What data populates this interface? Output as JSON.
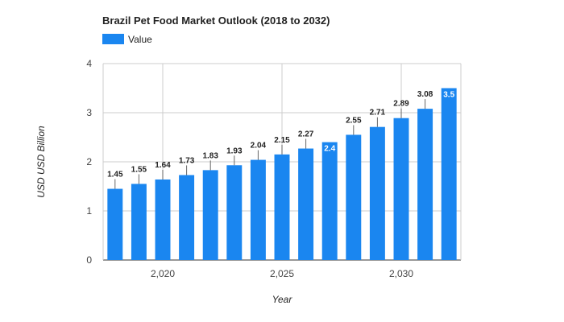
{
  "chart_data": {
    "type": "bar",
    "title": "Brazil Pet Food Market Outlook (2018 to 2032)",
    "xlabel": "Year",
    "ylabel": "USD USD Billion",
    "legend": {
      "position": "top-left",
      "entries": [
        "Value"
      ]
    },
    "x": [
      2018,
      2019,
      2020,
      2021,
      2022,
      2023,
      2024,
      2025,
      2026,
      2027,
      2028,
      2029,
      2030,
      2031,
      2032
    ],
    "series": [
      {
        "name": "Value",
        "values": [
          1.45,
          1.55,
          1.64,
          1.73,
          1.83,
          1.93,
          2.04,
          2.15,
          2.27,
          2.4,
          2.55,
          2.71,
          2.89,
          3.08,
          3.5
        ]
      }
    ],
    "data_labels": [
      "1.45",
      "1.55",
      "1.64",
      "1.73",
      "1.83",
      "1.93",
      "2.04",
      "2.15",
      "2.27",
      "2.4",
      "2.55",
      "2.71",
      "2.89",
      "3.08",
      "3.5"
    ],
    "xticks": [
      2020,
      2025,
      2030
    ],
    "xtick_labels": [
      "2,020",
      "2,025",
      "2,030"
    ],
    "yticks": [
      0,
      1,
      2,
      3,
      4
    ],
    "ylim": [
      0,
      4
    ],
    "xlim": [
      2017.5,
      2032.5
    ],
    "grid": true,
    "colors": {
      "bar": "#1a86f0",
      "grid": "#cccccc",
      "axis": "#333333"
    }
  }
}
